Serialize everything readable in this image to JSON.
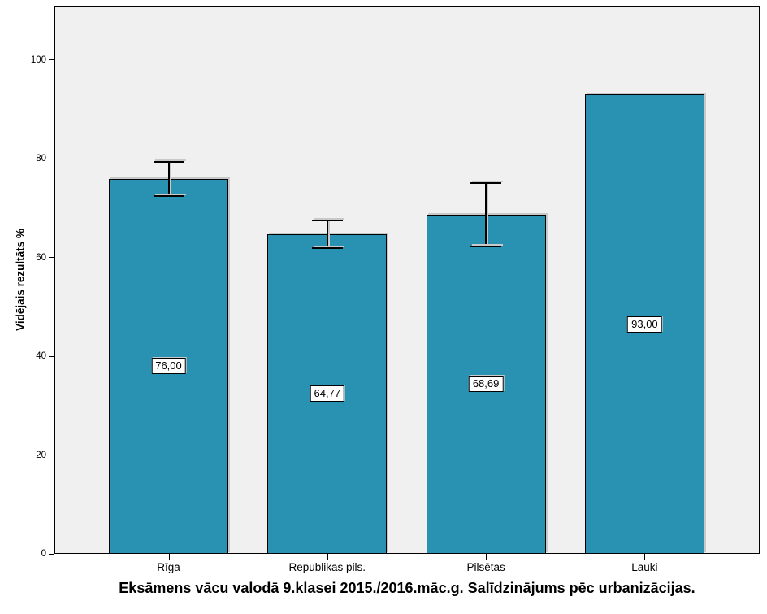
{
  "chart_data": {
    "type": "bar",
    "title": "Eksāmens vācu valodā 9.klasei 2015./2016.māc.g. Salīdzinājums pēc urbanizācijas.",
    "ylabel": "Vidējais rezultāts %",
    "xlabel": "",
    "categories": [
      "Rīga",
      "Republikas pils.",
      "Pilsētas",
      "Lauki"
    ],
    "values": [
      76.0,
      64.77,
      68.69,
      93.0
    ],
    "value_labels": [
      "76,00",
      "64,77",
      "68,69",
      "93,00"
    ],
    "error_bars": [
      {
        "low": 72.4,
        "high": 79.4
      },
      {
        "low": 61.9,
        "high": 67.5
      },
      {
        "low": 62.3,
        "high": 75.1
      },
      null
    ],
    "yticks": [
      0,
      20,
      40,
      60,
      80,
      100
    ],
    "ylim": [
      0,
      111
    ],
    "grid": false,
    "legend": false,
    "bar_color": "#2991B2",
    "plot_bg_color": "#F0F0F0",
    "axis_color": "#000000"
  }
}
